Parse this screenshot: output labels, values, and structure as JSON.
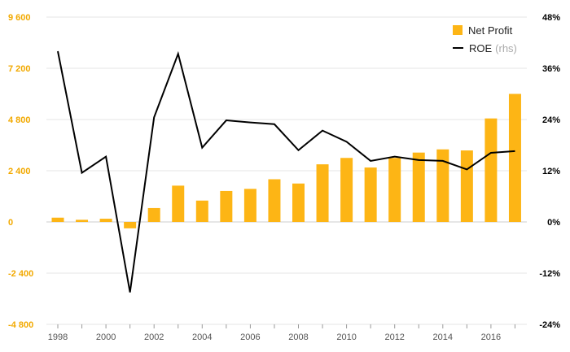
{
  "colors": {
    "bar": "#FDB515",
    "line": "#000000",
    "left_axis_text": "#F2A900",
    "right_axis_text": "#000000",
    "x_axis_text": "#555555",
    "grid": "#e6e6e6",
    "zero_line": "#cccccc"
  },
  "legend": {
    "bar_label": "Net Profit",
    "line_label": "ROE",
    "line_note": "(rhs)"
  },
  "chart_data": {
    "type": "bar",
    "categories": [
      "1998",
      "1999",
      "2000",
      "2001",
      "2002",
      "2003",
      "2004",
      "2005",
      "2006",
      "2007",
      "2008",
      "2009",
      "2010",
      "2011",
      "2012",
      "2013",
      "2014",
      "2015",
      "2016",
      "2017"
    ],
    "x_tick_labels": [
      "1998",
      "2000",
      "2002",
      "2004",
      "2006",
      "2008",
      "2010",
      "2012",
      "2014",
      "2016"
    ],
    "series": [
      {
        "name": "Net Profit",
        "type": "bar",
        "axis": "left",
        "values": [
          200,
          100,
          150,
          -300,
          650,
          1700,
          1000,
          1450,
          1550,
          2000,
          1800,
          2700,
          3000,
          2550,
          3000,
          3250,
          3400,
          3350,
          4850,
          6000
        ]
      },
      {
        "name": "ROE",
        "type": "line",
        "axis": "right",
        "values": [
          40.0,
          11.5,
          15.3,
          -16.5,
          24.5,
          39.4,
          17.4,
          23.8,
          23.3,
          22.9,
          16.8,
          21.4,
          18.8,
          14.3,
          15.3,
          14.5,
          14.3,
          12.3,
          16.2,
          16.6
        ]
      }
    ],
    "y_left": {
      "ticks": [
        "9 600",
        "7 200",
        "4 800",
        "2 400",
        "0",
        "-2 400",
        "-4 800"
      ],
      "range": [
        -4800,
        9600
      ]
    },
    "y_right": {
      "ticks": [
        "48%",
        "36%",
        "24%",
        "12%",
        "0%",
        "-12%",
        "-24%"
      ],
      "range": [
        -24,
        48
      ]
    },
    "grid": true,
    "legend_position": "top-right"
  }
}
